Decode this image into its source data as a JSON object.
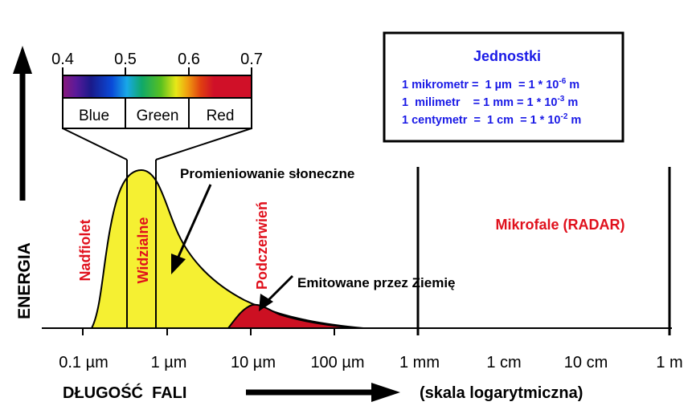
{
  "colors": {
    "visible_fill": "#f5f032",
    "earth_fill": "#cc1022",
    "region_label": "#e0101c",
    "units_text": "#1a1ae6",
    "axis": "#000000"
  },
  "axis": {
    "y_label": "ENERGIA",
    "x_label": "DŁUGOŚĆ  FALI",
    "x_note": "(skala logarytmiczna)",
    "ticks": [
      "0.1 µm",
      "1 µm",
      "10 µm",
      "100 µm",
      "1 mm",
      "1 cm",
      "10 cm",
      "1 m"
    ]
  },
  "spectrum_inset": {
    "scale": [
      "0.4",
      "0.5",
      "0.6",
      "0.7"
    ],
    "bands": [
      "Blue",
      "Green",
      "Red"
    ]
  },
  "regions": {
    "uv": "Nadfiolet",
    "visible": "Widzialne",
    "ir": "Podczerwień",
    "microwave": "Mikrofale (RADAR)"
  },
  "annotations": {
    "solar": "Promieniowanie słoneczne",
    "earth": "Emitowane przez Ziemię"
  },
  "units_box": {
    "title": "Jednostki",
    "lines": [
      {
        "text": "1 mikrometr =  1 µm  = 1 * 10",
        "exp": "-6",
        "suffix": " m"
      },
      {
        "text": "1  milimetr    = 1 mm = 1 * 10",
        "exp": "-3",
        "suffix": " m"
      },
      {
        "text": "1 centymetr  =  1 cm  = 1 * 10",
        "exp": "-2",
        "suffix": " m"
      }
    ]
  }
}
